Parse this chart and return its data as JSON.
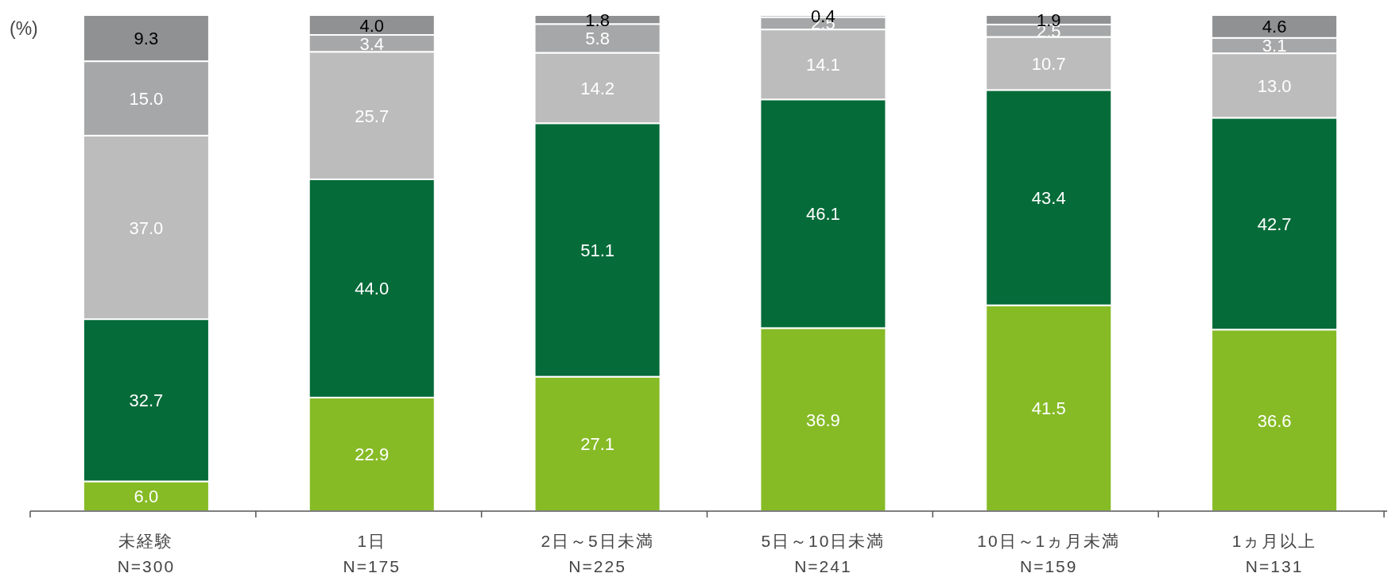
{
  "chart_data": {
    "type": "bar",
    "stacked": true,
    "ylabel": "(%)",
    "ylim": [
      0,
      100
    ],
    "categories": [
      "未経験\nN=300",
      "1日\nN=175",
      "2日～5日未満\nN=225",
      "5日～10日未満\nN=241",
      "10日～1ヵ月未満\nN=159",
      "1ヵ月以上\nN=131"
    ],
    "series": [
      {
        "color": "#86bb26",
        "values": [
          6.0,
          22.9,
          27.1,
          36.9,
          41.5,
          36.6
        ],
        "value_labels": [
          "6.0",
          "22.9",
          "27.1",
          "36.9",
          "41.5",
          "36.6"
        ]
      },
      {
        "color": "#046b39",
        "values": [
          32.7,
          44.0,
          51.1,
          46.1,
          43.4,
          42.7
        ],
        "value_labels": [
          "32.7",
          "44.0",
          "51.1",
          "46.1",
          "43.4",
          "42.7"
        ]
      },
      {
        "color": "#bbbcbb",
        "values": [
          37.0,
          25.7,
          14.2,
          14.1,
          10.7,
          13.0
        ],
        "value_labels": [
          "37.0",
          "25.7",
          "14.2",
          "14.1",
          "10.7",
          "13.0"
        ]
      },
      {
        "color": "#a6a7a8",
        "values": [
          15.0,
          3.4,
          5.8,
          2.5,
          2.5,
          3.1
        ],
        "value_labels": [
          "15.0",
          "3.4",
          "5.8",
          "2.5",
          "2.5",
          "3.1"
        ]
      },
      {
        "color": "#909192",
        "values": [
          9.3,
          4.0,
          1.8,
          0.4,
          1.9,
          4.6
        ],
        "value_labels": [
          "9.3",
          "4.0",
          "1.8",
          "0.4",
          "1.9",
          "4.6"
        ]
      }
    ]
  }
}
